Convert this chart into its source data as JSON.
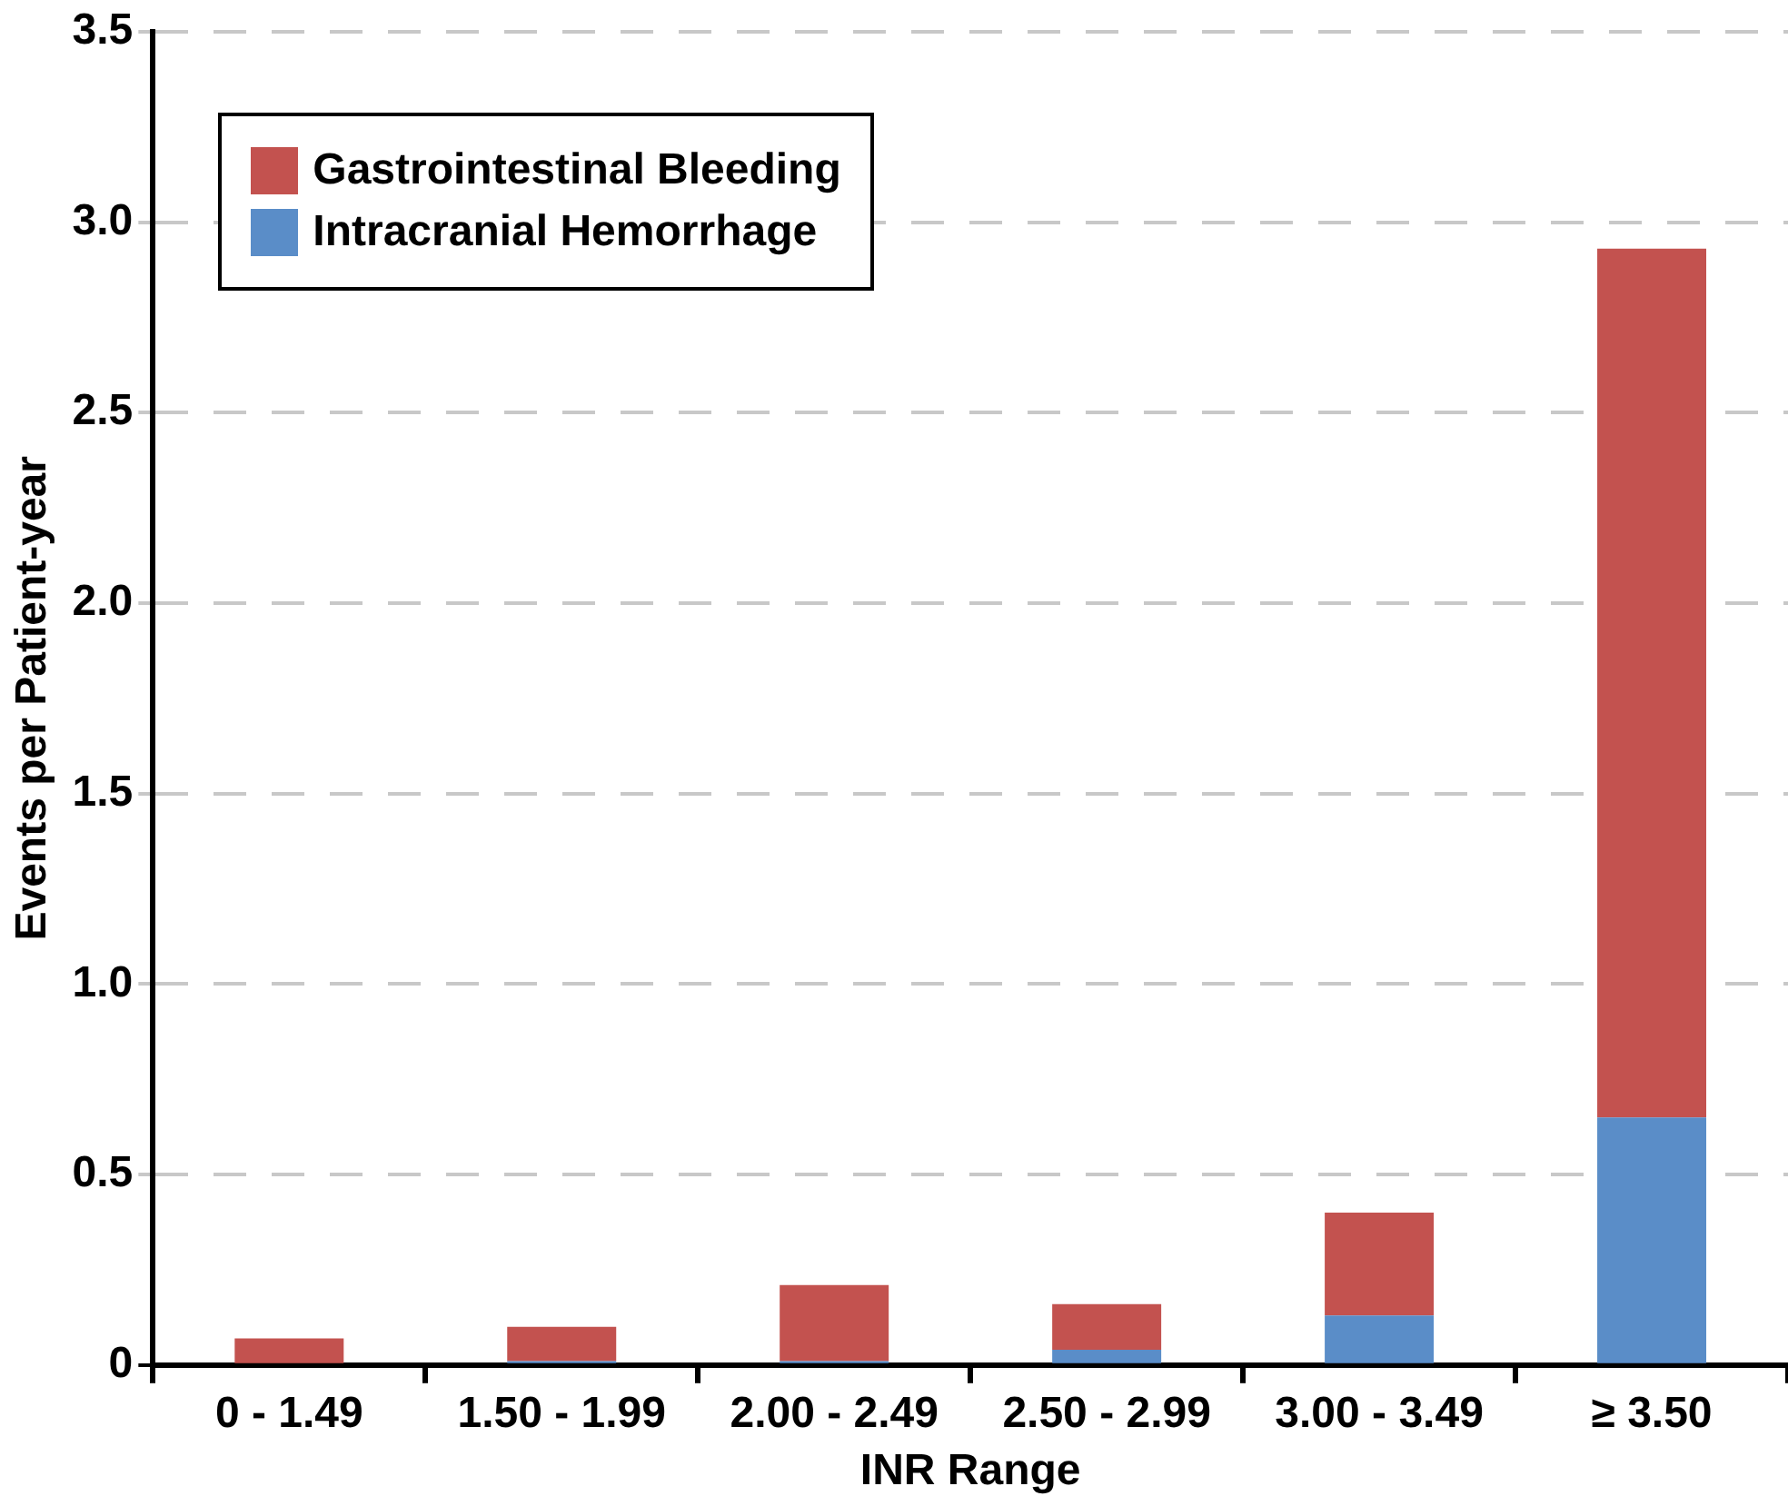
{
  "chart_data": {
    "type": "bar",
    "stacked": true,
    "xlabel": "INR Range",
    "ylabel": "Events per Patient-year",
    "categories": [
      "0 - 1.49",
      "1.50 - 1.99",
      "2.00 - 2.49",
      "2.50 - 2.99",
      "3.00 - 3.49",
      "≥ 3.50"
    ],
    "series": [
      {
        "name": "Intracranial Hemorrhage",
        "color": "#5a8dc8",
        "values": [
          0,
          0.01,
          0.01,
          0.04,
          0.13,
          0.65
        ]
      },
      {
        "name": "Gastrointestinal Bleeding",
        "color": "#c3524f",
        "values": [
          0.07,
          0.09,
          0.2,
          0.12,
          0.27,
          2.28
        ]
      }
    ],
    "ylim": [
      0,
      3.5
    ],
    "yticks": [
      {
        "value": 0,
        "label": "0"
      },
      0.5,
      {
        "value": 1,
        "label": "1.0"
      },
      1.5,
      {
        "value": 2,
        "label": "2.0"
      },
      2.5,
      {
        "value": 3,
        "label": "3.0"
      },
      3.5
    ],
    "grid": "y",
    "legend": "top left"
  }
}
